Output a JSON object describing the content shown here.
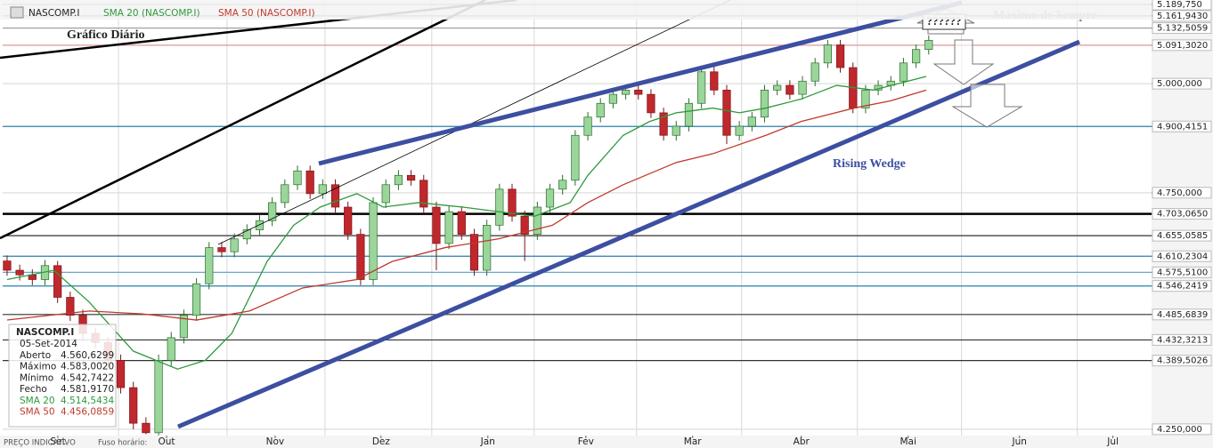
{
  "chart_data": {
    "type": "candlestick",
    "log": true,
    "xlim": [
      -0.35,
      90.65
    ],
    "ylim": [
      4237.4,
      5200.7
    ],
    "candles": {
      "name": "NASCOMP.I",
      "up_color": "#9ad69a",
      "down_color": "#c0282d",
      "open": [
        4600,
        4580,
        4570,
        4560,
        4590,
        4522,
        4484,
        4446,
        4427,
        4390,
        4334,
        4262,
        4243,
        4390,
        4437,
        4484,
        4551,
        4629,
        4620,
        4648,
        4668,
        4688,
        4728,
        4768,
        4799,
        4748,
        4768,
        4718,
        4658,
        4560,
        4728,
        4768,
        4789,
        4778,
        4718,
        4638,
        4708,
        4658,
        4580,
        4678,
        4758,
        4698,
        4658,
        4718,
        4758,
        4778,
        4880,
        4922,
        4954,
        4975,
        4985,
        4975,
        4932,
        4880,
        4901,
        4954,
        5028,
        4985,
        4880,
        4901,
        4922,
        4985,
        4996,
        4975,
        5006,
        5049,
        5092,
        5038,
        4943,
        4985,
        4996,
        5006,
        5049,
        5081
      ],
      "high": [
        4612,
        4592,
        4582,
        4602,
        4600,
        4534,
        4496,
        4458,
        4439,
        4402,
        4346,
        4274,
        4402,
        4449,
        4496,
        4563,
        4641,
        4641,
        4660,
        4680,
        4700,
        4740,
        4780,
        4811,
        4811,
        4780,
        4780,
        4730,
        4670,
        4740,
        4780,
        4801,
        4801,
        4790,
        4730,
        4720,
        4720,
        4670,
        4690,
        4770,
        4770,
        4710,
        4730,
        4770,
        4790,
        4892,
        4934,
        4966,
        4987,
        4997,
        4997,
        4987,
        4944,
        4913,
        4966,
        5040,
        5040,
        4997,
        4913,
        4934,
        4997,
        5008,
        5008,
        5018,
        5061,
        5104,
        5104,
        5050,
        4997,
        5008,
        5018,
        5061,
        5093,
        5115
      ],
      "low": [
        4568,
        4558,
        4548,
        4548,
        4510,
        4472,
        4434,
        4415,
        4378,
        4322,
        4250,
        4240,
        4238,
        4378,
        4425,
        4472,
        4539,
        4608,
        4608,
        4636,
        4656,
        4676,
        4716,
        4756,
        4736,
        4736,
        4706,
        4646,
        4548,
        4548,
        4716,
        4756,
        4766,
        4706,
        4580,
        4626,
        4646,
        4568,
        4568,
        4666,
        4686,
        4600,
        4646,
        4706,
        4746,
        4766,
        4868,
        4910,
        4942,
        4963,
        4963,
        4920,
        4868,
        4868,
        4889,
        4942,
        4973,
        4860,
        4868,
        4889,
        4910,
        4973,
        4963,
        4963,
        4994,
        5037,
        5026,
        4931,
        4931,
        4973,
        4984,
        4994,
        5037,
        5069
      ],
      "close": [
        4580,
        4570,
        4560,
        4590,
        4522,
        4484,
        4446,
        4427,
        4390,
        4334,
        4262,
        4243,
        4390,
        4437,
        4484,
        4551,
        4629,
        4620,
        4648,
        4668,
        4688,
        4728,
        4768,
        4799,
        4748,
        4768,
        4718,
        4658,
        4560,
        4728,
        4768,
        4789,
        4778,
        4718,
        4638,
        4708,
        4658,
        4580,
        4678,
        4758,
        4698,
        4658,
        4718,
        4758,
        4778,
        4880,
        4922,
        4954,
        4975,
        4985,
        4975,
        4932,
        4880,
        4901,
        4954,
        5028,
        4985,
        4880,
        4901,
        4922,
        4985,
        4996,
        4975,
        5006,
        5049,
        5092,
        5038,
        4943,
        4985,
        4996,
        5006,
        5049,
        5081,
        5103
      ]
    },
    "series": [
      {
        "name": "SMA 20 (NASCOMP.I)",
        "color": "#2e9a3c",
        "x": [
          0,
          3.7,
          6.5,
          10,
          13.5,
          15.7,
          17.8,
          20.6,
          22.7,
          24.8,
          27.7,
          29.8,
          32.6,
          36.1,
          38.9,
          41.8,
          44.6,
          46,
          48.8,
          50.9,
          53,
          55.9,
          58,
          60.1,
          62.9,
          65.7,
          68.6,
          72.8
        ],
        "values": [
          4560,
          4580,
          4512,
          4409,
          4372,
          4390,
          4446,
          4599,
          4678,
          4718,
          4748,
          4718,
          4728,
          4718,
          4708,
          4698,
          4728,
          4789,
          4880,
          4912,
          4932,
          4943,
          4932,
          4943,
          4964,
          4996,
          4985,
          5017
        ]
      },
      {
        "name": "SMA 50 (NASCOMP.I)",
        "color": "#c0392b",
        "x": [
          0,
          6.5,
          10.7,
          15,
          19.2,
          23.4,
          27.7,
          30.5,
          34.7,
          38.9,
          43.2,
          46,
          48.8,
          53,
          55.9,
          60.1,
          62.9,
          67.1,
          70,
          72.8
        ],
        "values": [
          4474,
          4493,
          4487,
          4474,
          4493,
          4542,
          4560,
          4599,
          4629,
          4648,
          4678,
          4728,
          4768,
          4818,
          4838,
          4880,
          4912,
          4943,
          4960,
          4985
        ]
      }
    ],
    "yticks": [
      {
        "value": 5189.75,
        "label": "5.189,750",
        "color": "#555"
      },
      {
        "value": 5161.943,
        "label": "5.161,9430",
        "color": "#555"
      },
      {
        "value": 5132.5059,
        "label": "5.132,5059",
        "color": "#999"
      },
      {
        "value": 5091.302,
        "label": "5.091,3020",
        "color": "#d99"
      },
      {
        "value": 5000,
        "label": "5.000,000",
        "color": "#ddd"
      },
      {
        "value": 4900.4151,
        "label": "4.900,4151",
        "color": "#2a7fa8"
      },
      {
        "value": 4750,
        "label": "4.750,000",
        "color": "#ddd"
      },
      {
        "value": 4703.065,
        "label": "4.703,0650",
        "color": "#000"
      },
      {
        "value": 4655.0585,
        "label": "4.655,0585",
        "color": "#333"
      },
      {
        "value": 4610.2304,
        "label": "4.610,2304",
        "color": "#2a7fa8"
      },
      {
        "value": 4575.51,
        "label": "4.575,5100",
        "color": "#6aa8c8"
      },
      {
        "value": 4546.2419,
        "label": "4.546,2419",
        "color": "#2a7fa8"
      },
      {
        "value": 4485.6839,
        "label": "4.485,6839",
        "color": "#333"
      },
      {
        "value": 4432.3213,
        "label": "4.432,3213",
        "color": "#333"
      },
      {
        "value": 4389.5026,
        "label": "4.389,5026",
        "color": "#333"
      },
      {
        "value": 4250,
        "label": "4.250,000",
        "color": "#ddd"
      }
    ],
    "xticks": [
      {
        "value": 4.02,
        "label": "Set"
      },
      {
        "value": 12.63,
        "label": "Out"
      },
      {
        "value": 21.23,
        "label": "Nov"
      },
      {
        "value": 29.62,
        "label": "Dez"
      },
      {
        "value": 38.08,
        "label": "Jan"
      },
      {
        "value": 45.84,
        "label": "Fev"
      },
      {
        "value": 54.3,
        "label": "Mar"
      },
      {
        "value": 62.91,
        "label": "Abr"
      },
      {
        "value": 71.37,
        "label": "Mai"
      },
      {
        "value": 80.19,
        "label": "Jun"
      },
      {
        "value": 87.59,
        "label": "Jul"
      }
    ],
    "xgrid": [
      8.82,
      17.42,
      25.18,
      33.64,
      41.75,
      49.86,
      58.18,
      67.35,
      75.6,
      84.77
    ],
    "annotations": {
      "chart_label": "Gráfico Diário",
      "pattern": "Rising Wedge",
      "question": "??????",
      "record": "Máximo de Sempre"
    },
    "info_box": {
      "title": "NASCOMP.I",
      "date": "05-Set-2014",
      "rows": [
        [
          "Aberto",
          "4.560,6299"
        ],
        [
          "Máximo",
          "4.583,0020"
        ],
        [
          "Mínimo",
          "4.542,7422"
        ],
        [
          "Fecho",
          "4.581,9170"
        ],
        [
          "SMA 20",
          "4.514,5434"
        ],
        [
          "SMA 50",
          "4.456,0859"
        ]
      ]
    },
    "footer": {
      "price_note": "PREÇO INDICATIVO",
      "timezone": "Fuso horário:"
    }
  }
}
